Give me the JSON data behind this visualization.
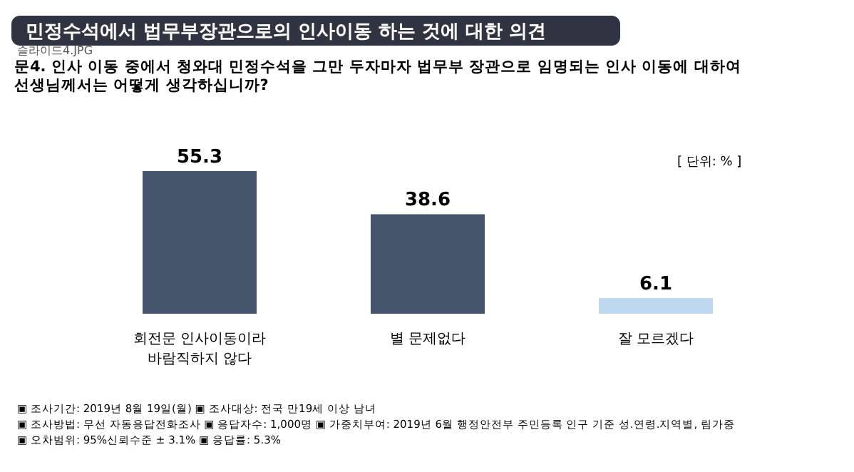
{
  "chart_data": {
    "type": "bar",
    "title": "민정수석에서 법무부장관으로의 인사이동 하는 것에 대한 의견",
    "subtitle": "문4. 인사 이동 중에서 청와대 민정수석을 그만 두자마자 법무부 장관으로 임명되는 인사 이동에 대하여 선생님께서는 어떻게 생각하십니까?",
    "categories": [
      "회전문 인사이동이라 바람직하지 않다",
      "별 문제없다",
      "잘 모르겠다"
    ],
    "values": [
      55.3,
      38.6,
      6.1
    ],
    "colors": [
      "#44546a",
      "#44546a",
      "#bdd7ee"
    ],
    "data_labels": true,
    "annotations": [
      "[ 단위: % ]",
      "슬라이드4.JPG",
      "▣ 조사기간: 2019년 8월 19일(월) ▣ 조사대상: 전국 만19세 이상 남녀",
      "▣ 조사방법: 무선 자동응답전화조사 ▣ 응답자수: 1,000명 ▣ 가중치부여: 2019년 6월 행정안전부 주민등록 인구 기준 성.연령.지역별, 림가중",
      "▣ 오차범위: 95%신뢰수준 ± 3.1% ▣ 응답률: 5.3%"
    ]
  }
}
